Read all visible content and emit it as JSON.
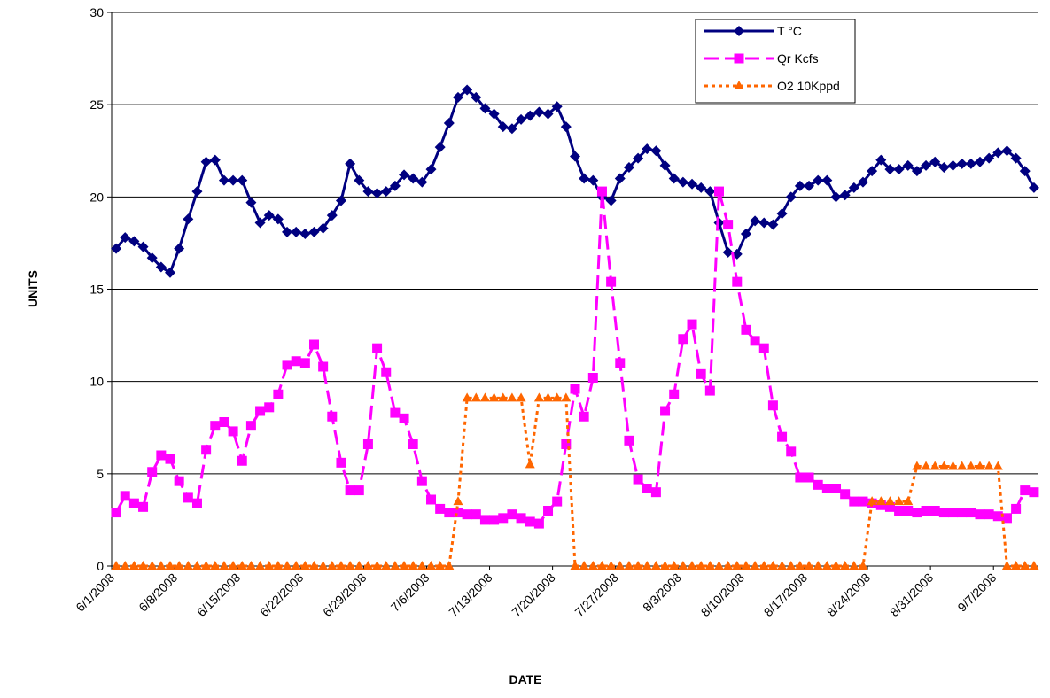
{
  "chart_data": {
    "type": "line",
    "xlabel": "DATE",
    "ylabel": "UNITS",
    "categories": [
      "6/1/2008",
      null,
      null,
      null,
      null,
      null,
      null,
      "6/8/2008",
      null,
      null,
      null,
      null,
      null,
      null,
      "6/15/2008",
      null,
      null,
      null,
      null,
      null,
      null,
      "6/22/2008",
      null,
      null,
      null,
      null,
      null,
      null,
      "6/29/2008",
      null,
      null,
      null,
      null,
      null,
      null,
      "7/6/2008",
      null,
      null,
      null,
      null,
      null,
      null,
      "7/13/2008",
      null,
      null,
      null,
      null,
      null,
      null,
      "7/20/2008",
      null,
      null,
      null,
      null,
      null,
      null,
      "7/27/2008",
      null,
      null,
      null,
      null,
      null,
      null,
      "8/3/2008",
      null,
      null,
      null,
      null,
      null,
      null,
      "8/10/2008",
      null,
      null,
      null,
      null,
      null,
      null,
      "8/17/2008",
      null,
      null,
      null,
      null,
      null,
      null,
      "8/24/2008",
      null,
      null,
      null,
      null,
      null,
      null,
      "8/31/2008",
      null,
      null,
      null,
      null,
      null,
      null,
      "9/7/2008",
      null,
      null,
      null,
      null
    ],
    "series": [
      {
        "name": "T °C",
        "color": "#000080",
        "marker": "diamond",
        "dash": "solid",
        "values": [
          17.2,
          17.8,
          17.6,
          17.3,
          16.7,
          16.2,
          15.9,
          17.2,
          18.8,
          20.3,
          21.9,
          22.0,
          20.9,
          20.9,
          20.9,
          19.7,
          18.6,
          19.0,
          18.8,
          18.1,
          18.1,
          18.0,
          18.1,
          18.3,
          19.0,
          19.8,
          21.8,
          20.9,
          20.3,
          20.2,
          20.3,
          20.6,
          21.2,
          21.0,
          20.8,
          21.5,
          22.7,
          24.0,
          25.4,
          25.8,
          25.4,
          24.8,
          24.5,
          23.8,
          23.7,
          24.2,
          24.4,
          24.6,
          24.5,
          24.9,
          23.8,
          22.2,
          21.0,
          20.9,
          20.0,
          19.8,
          21.0,
          21.6,
          22.1,
          22.6,
          22.5,
          21.7,
          21.0,
          20.8,
          20.7,
          20.5,
          20.3,
          18.6,
          17.0,
          16.9,
          18.0,
          18.7,
          18.6,
          18.5,
          19.1,
          20.0,
          20.6,
          20.6,
          20.9,
          20.9,
          20.0,
          20.1,
          20.5,
          20.8,
          21.4,
          22.0,
          21.5,
          21.5,
          21.7,
          21.4,
          21.7,
          21.9,
          21.6,
          21.7,
          21.8,
          21.8,
          21.9,
          22.1,
          22.4,
          22.5,
          22.1,
          21.4,
          20.5
        ]
      },
      {
        "name": "Qr Kcfs",
        "color": "#ff00ff",
        "marker": "square",
        "dash": "dashed",
        "values": [
          2.9,
          3.8,
          3.4,
          3.2,
          5.1,
          6.0,
          5.8,
          4.6,
          3.7,
          3.4,
          6.3,
          7.6,
          7.8,
          7.3,
          5.7,
          7.6,
          8.4,
          8.6,
          9.3,
          10.9,
          11.1,
          11.0,
          12.0,
          10.8,
          8.1,
          5.6,
          4.1,
          4.1,
          6.6,
          11.8,
          10.5,
          8.3,
          8.0,
          6.6,
          4.6,
          3.6,
          3.1,
          2.9,
          2.9,
          2.8,
          2.8,
          2.5,
          2.5,
          2.6,
          2.8,
          2.6,
          2.4,
          2.3,
          3.0,
          3.5,
          6.6,
          9.6,
          8.1,
          10.2,
          20.3,
          15.4,
          11.0,
          6.8,
          4.7,
          4.2,
          4.0,
          8.4,
          9.3,
          12.3,
          13.1,
          10.4,
          9.5,
          20.3,
          18.5,
          15.4,
          12.8,
          12.2,
          11.8,
          8.7,
          7.0,
          6.2,
          4.8,
          4.8,
          4.4,
          4.2,
          4.2,
          3.9,
          3.5,
          3.5,
          3.4,
          3.3,
          3.2,
          3.0,
          3.0,
          2.9,
          3.0,
          3.0,
          2.9,
          2.9,
          2.9,
          2.9,
          2.8,
          2.8,
          2.7,
          2.6,
          3.1,
          4.1,
          4.0
        ]
      },
      {
        "name": "O2 10Kppd",
        "color": "#ff6600",
        "marker": "triangle",
        "dash": "dotted",
        "values": [
          0,
          0,
          0,
          0,
          0,
          0,
          0,
          0,
          0,
          0,
          0,
          0,
          0,
          0,
          0,
          0,
          0,
          0,
          0,
          0,
          0,
          0,
          0,
          0,
          0,
          0,
          0,
          0,
          0,
          0,
          0,
          0,
          0,
          0,
          0,
          0,
          0,
          0,
          3.5,
          9.1,
          9.1,
          9.1,
          9.1,
          9.1,
          9.1,
          9.1,
          5.5,
          9.1,
          9.1,
          9.1,
          9.1,
          0,
          0,
          0,
          0,
          0,
          0,
          0,
          0,
          0,
          0,
          0,
          0,
          0,
          0,
          0,
          0,
          0,
          0,
          0,
          0,
          0,
          0,
          0,
          0,
          0,
          0,
          0,
          0,
          0,
          0,
          0,
          0,
          0,
          3.5,
          3.5,
          3.5,
          3.5,
          3.5,
          5.4,
          5.4,
          5.4,
          5.4,
          5.4,
          5.4,
          5.4,
          5.4,
          5.4,
          5.4,
          0,
          0,
          0,
          0
        ]
      }
    ],
    "ylim": [
      0,
      30
    ],
    "yticks": [
      0,
      5,
      10,
      15,
      20,
      25,
      30
    ],
    "grid": true,
    "legend": "top-right"
  }
}
